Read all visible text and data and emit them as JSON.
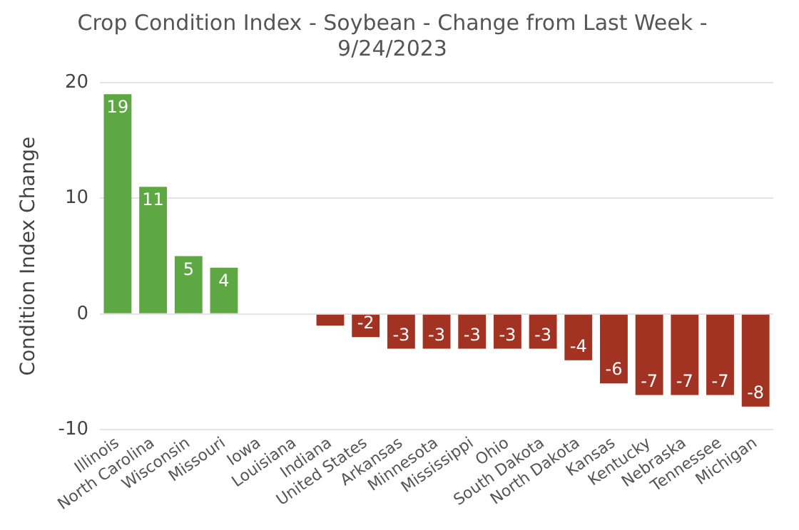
{
  "chart_data": {
    "type": "bar",
    "title": "Crop Condition Index - Soybean - Change from Last Week - 9/24/2023",
    "ylabel": "Condition Index Change",
    "categories": [
      "Illinois",
      "North Carolina",
      "Wisconsin",
      "Missouri",
      "Iowa",
      "Louisiana",
      "Indiana",
      "United States",
      "Arkansas",
      "Minnesota",
      "Mississippi",
      "Ohio",
      "South Dakota",
      "North Dakota",
      "Kansas",
      "Kentucky",
      "Nebraska",
      "Tennessee",
      "Michigan"
    ],
    "values": [
      19,
      11,
      5,
      4,
      0,
      0,
      -1,
      -2,
      -3,
      -3,
      -3,
      -3,
      -3,
      -4,
      -6,
      -7,
      -7,
      -7,
      -8
    ],
    "value_labels": [
      "19",
      "11",
      "5",
      "4",
      null,
      null,
      null,
      "-2",
      "-3",
      "-3",
      "-3",
      "-3",
      "-3",
      "-4",
      "-6",
      "-7",
      "-7",
      "-7",
      "-8"
    ],
    "colors": [
      "#5ea843",
      "#5ea843",
      "#5ea843",
      "#5ea843",
      "#5ea843",
      "#5ea843",
      "#a23322",
      "#a23322",
      "#a23322",
      "#a23322",
      "#a23322",
      "#a23322",
      "#a23322",
      "#a23322",
      "#a23322",
      "#a23322",
      "#a23322",
      "#a23322",
      "#a23322"
    ],
    "ylim": [
      -10,
      20
    ],
    "yticks": [
      -10,
      0,
      10,
      20
    ],
    "grid": "y",
    "legend": false
  }
}
